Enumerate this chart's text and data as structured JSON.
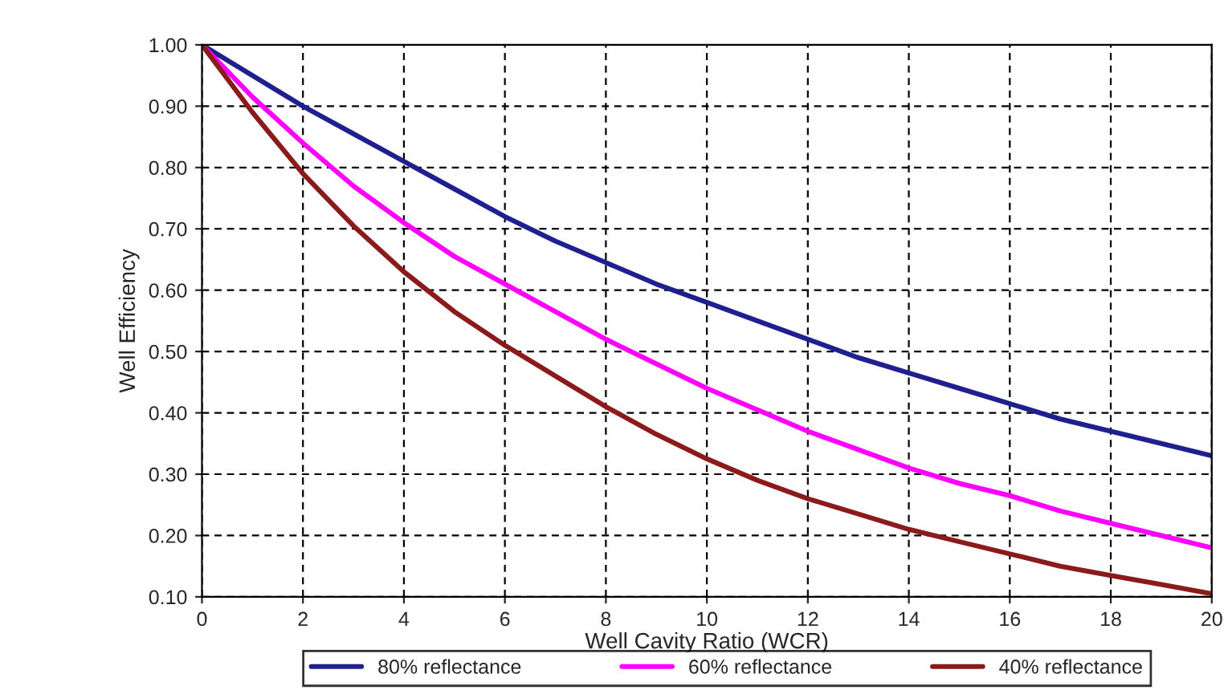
{
  "chart_data": {
    "type": "line",
    "xlabel": "Well Cavity Ratio (WCR)",
    "ylabel": "Well Efficiency",
    "x": [
      0,
      1,
      2,
      3,
      4,
      5,
      6,
      7,
      8,
      9,
      10,
      11,
      12,
      13,
      14,
      15,
      16,
      17,
      18,
      19,
      20
    ],
    "series": [
      {
        "name": "80% reflectance",
        "color": "#1f1f8f",
        "values": [
          1.0,
          0.95,
          0.9,
          0.855,
          0.81,
          0.765,
          0.72,
          0.68,
          0.645,
          0.61,
          0.58,
          0.55,
          0.52,
          0.49,
          0.465,
          0.44,
          0.415,
          0.39,
          0.37,
          0.35,
          0.33
        ]
      },
      {
        "name": "60% reflectance",
        "color": "#ff00ff",
        "values": [
          1.0,
          0.915,
          0.84,
          0.77,
          0.71,
          0.655,
          0.61,
          0.565,
          0.52,
          0.48,
          0.44,
          0.405,
          0.37,
          0.34,
          0.31,
          0.285,
          0.265,
          0.24,
          0.22,
          0.2,
          0.18
        ]
      },
      {
        "name": "40% reflectance",
        "color": "#8b1a1a",
        "values": [
          1.0,
          0.89,
          0.79,
          0.705,
          0.63,
          0.565,
          0.51,
          0.46,
          0.41,
          0.365,
          0.325,
          0.29,
          0.26,
          0.235,
          0.21,
          0.19,
          0.17,
          0.15,
          0.135,
          0.12,
          0.105
        ]
      }
    ],
    "xlim": [
      0,
      20
    ],
    "xticks": [
      0,
      2,
      4,
      6,
      8,
      10,
      12,
      14,
      16,
      18,
      20
    ],
    "ylim": [
      0.1,
      1.0
    ],
    "yticks": [
      {
        "value": 0.1,
        "label": "0.10"
      },
      {
        "value": 0.2,
        "label": "0.20"
      },
      {
        "value": 0.3,
        "label": "0.30"
      },
      {
        "value": 0.4,
        "label": "0.40"
      },
      {
        "value": 0.5,
        "label": "0.50"
      },
      {
        "value": 0.6,
        "label": "0.60"
      },
      {
        "value": 0.7,
        "label": "0.70"
      },
      {
        "value": 0.8,
        "label": "0.80"
      },
      {
        "value": 0.9,
        "label": "0.90"
      },
      {
        "value": 1.0,
        "label": "1.00"
      }
    ],
    "grid": true,
    "legend": "bottom",
    "marker": "none",
    "line_style": "solid"
  }
}
